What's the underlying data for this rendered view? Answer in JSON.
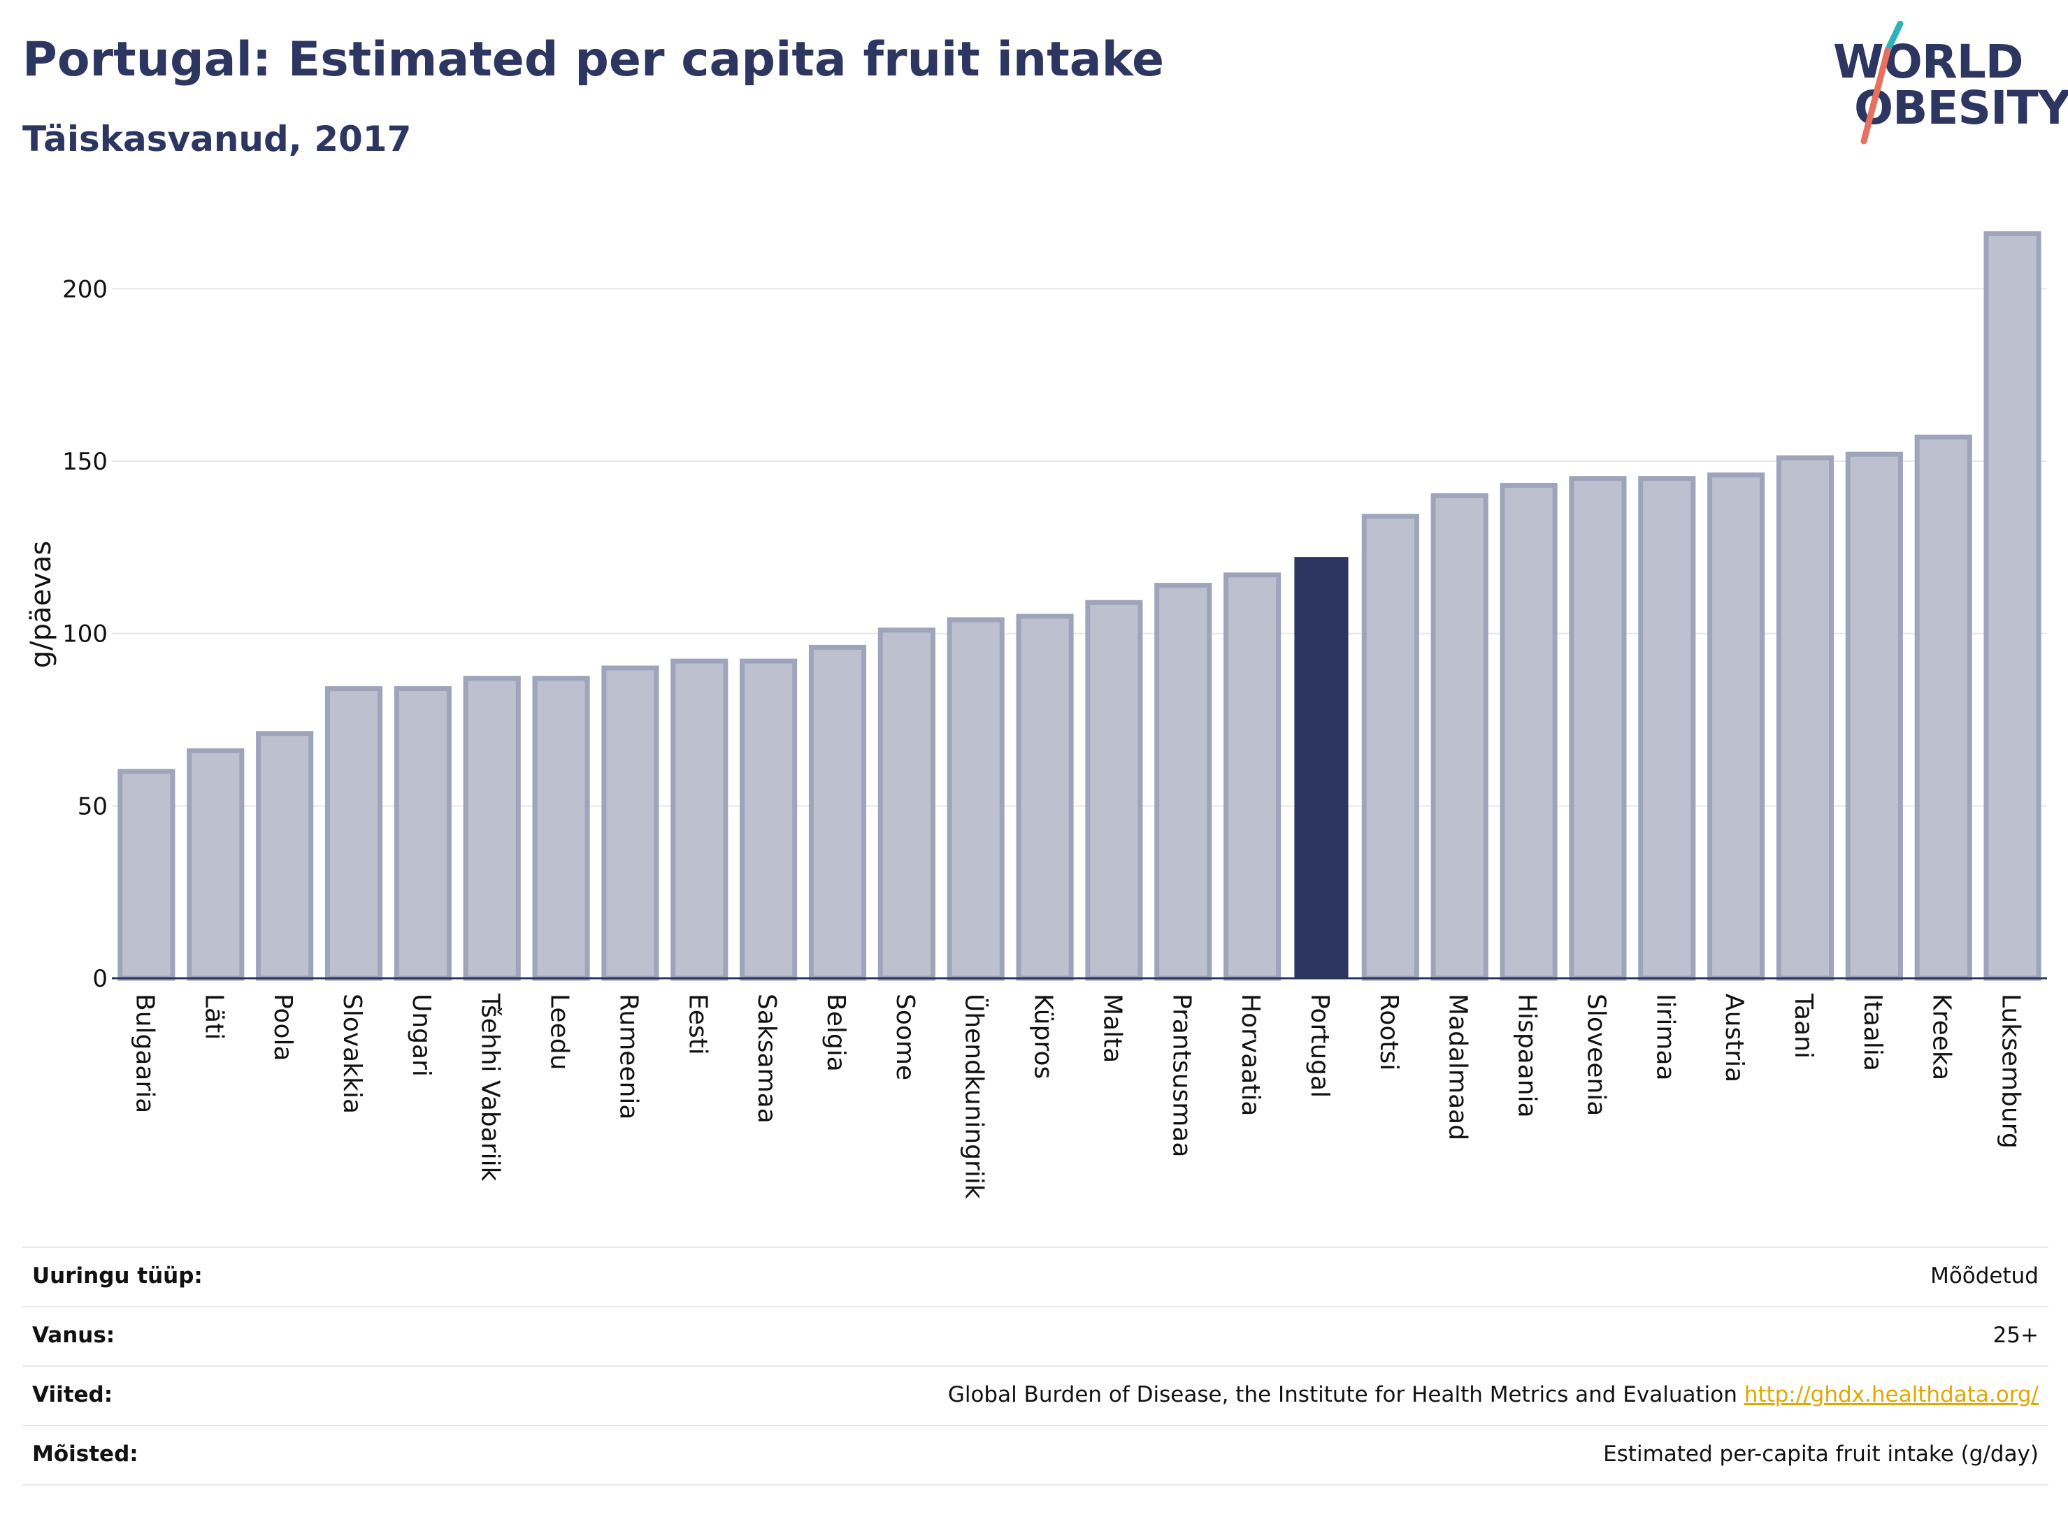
{
  "header": {
    "title": "Portugal: Estimated per capita fruit intake",
    "subtitle": "Täiskasvanud, 2017"
  },
  "logo": {
    "line1": "WORLD",
    "line2": "OBESITY",
    "colors": {
      "text": "#2d3561",
      "slash_top": "#2bb5b8",
      "slash_bottom": "#e8705f"
    }
  },
  "colors": {
    "bar_default_fill": "#bcc0cf",
    "bar_default_stroke": "#9fa4bb",
    "bar_highlight": "#2d3561",
    "axis": "#2d3561",
    "grid": "#e6e8ee",
    "text": "#111111"
  },
  "chart_data": {
    "type": "bar",
    "ylabel": "g/päevas",
    "ylim": [
      0,
      225
    ],
    "yticks": [
      0,
      50,
      100,
      150,
      200
    ],
    "grid": true,
    "highlight": "Portugal",
    "categories": [
      "Bulgaaria",
      "Läti",
      "Poola",
      "Slovakkia",
      "Ungari",
      "Tšehhi Vabariik",
      "Leedu",
      "Rumeenia",
      "Eesti",
      "Saksamaa",
      "Belgia",
      "Soome",
      "Ühendkuningriik",
      "Küpros",
      "Malta",
      "Prantsusmaa",
      "Horvaatia",
      "Portugal",
      "Rootsi",
      "Madalmaad",
      "Hispaania",
      "Sloveenia",
      "Iirimaa",
      "Austria",
      "Taani",
      "Itaalia",
      "Kreeka",
      "Luksemburg"
    ],
    "values": [
      60,
      66,
      71,
      84,
      84,
      87,
      87,
      90,
      92,
      92,
      96,
      101,
      104,
      105,
      109,
      114,
      117,
      122,
      134,
      140,
      143,
      145,
      145,
      146,
      151,
      152,
      157,
      216
    ]
  },
  "info_table": [
    {
      "label": "Uuringu tüüp:",
      "value": "Mõõdetud",
      "link": ""
    },
    {
      "label": "Vanus:",
      "value": "25+",
      "link": ""
    },
    {
      "label": "Viited:",
      "value": "Global Burden of Disease, the Institute for Health Metrics and Evaluation ",
      "link": "http://ghdx.healthdata.org/"
    },
    {
      "label": "Mõisted:",
      "value": "Estimated per-capita fruit intake (g/day)",
      "link": ""
    }
  ]
}
